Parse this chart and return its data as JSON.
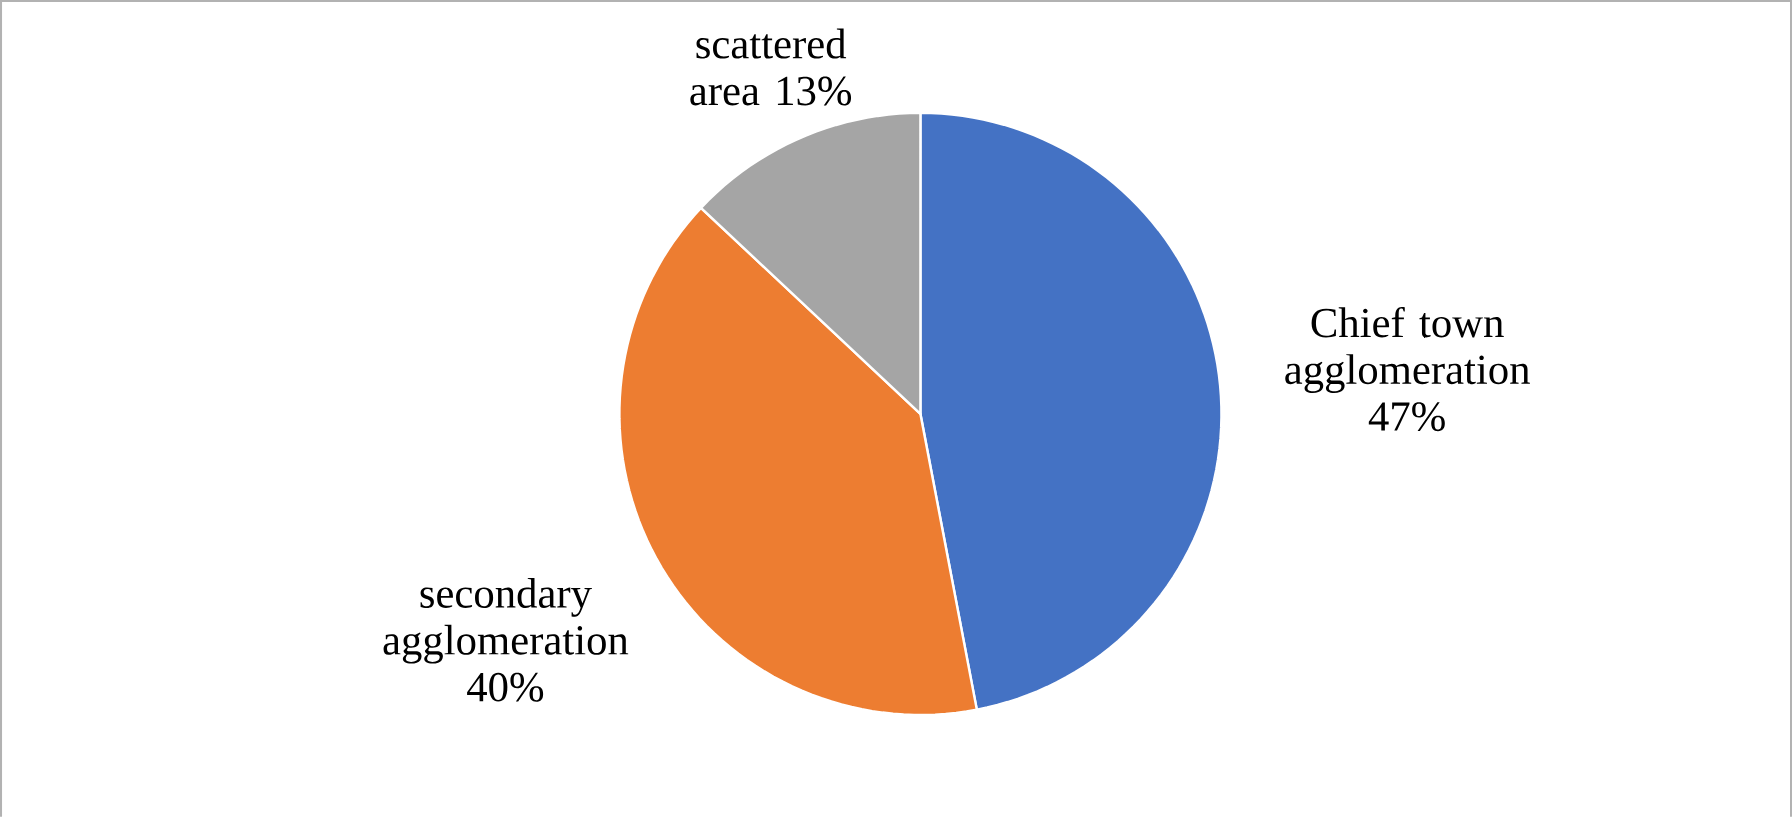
{
  "chart_data": {
    "type": "pie",
    "categories": [
      "Chief town agglomeration",
      "secondary agglomeration",
      "scattered area"
    ],
    "values": [
      47,
      40,
      13
    ],
    "colors": [
      "#4472c4",
      "#ed7d31",
      "#a5a5a5"
    ],
    "value_labels": [
      "47%",
      "40%",
      "13%"
    ]
  }
}
